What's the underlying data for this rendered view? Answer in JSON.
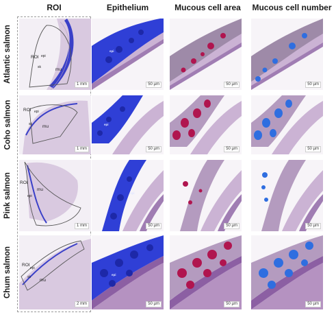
{
  "columns": [
    "ROI",
    "Epithelium",
    "Mucous cell area",
    "Mucous cell number"
  ],
  "rows": [
    {
      "name": "Atlantic salmon",
      "roi_scale": "1 mm",
      "roi_labels": [
        "ROI",
        "epi",
        "sk",
        "mu"
      ]
    },
    {
      "name": "Coho salmon",
      "roi_scale": "1 mm",
      "roi_labels": [
        "ROI",
        "epi",
        "sk",
        "mu"
      ]
    },
    {
      "name": "Pink salmon",
      "roi_scale": "1 mm",
      "roi_labels": [
        "ROI",
        "epi",
        "mu"
      ]
    },
    {
      "name": "Chum salmon",
      "roi_scale": "2 mm",
      "roi_labels": [
        "ROI",
        "epi",
        "sk",
        "mu"
      ]
    }
  ],
  "micro_scale": "50 µm",
  "epi_label": "epi",
  "colors": {
    "tissue": "#d7c6dd",
    "muscle": "#b592c1",
    "epithelium": "#2f3fd6",
    "mucous_area": "#b0154f",
    "mucous_number": "#2f6ee0",
    "roi_outline": "#555555"
  }
}
